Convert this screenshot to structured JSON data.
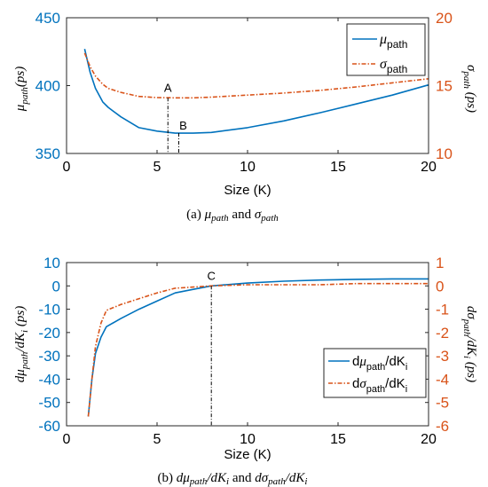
{
  "colors": {
    "blue": "#0072BD",
    "orange": "#D95319",
    "axis": "#262626",
    "text": "#000000"
  },
  "chart_data": [
    {
      "type": "line",
      "xlabel": "Size (K)",
      "xlim": [
        0,
        20
      ],
      "x_ticks": [
        "0",
        "5",
        "10",
        "15",
        "20"
      ],
      "ylabel_left": "μpath (ps)",
      "ylim_left": [
        350,
        450
      ],
      "y_ticks_left": [
        "350",
        "400",
        "450"
      ],
      "ylabel_right": "σpath (ps)",
      "ylim_right": [
        10,
        20
      ],
      "y_ticks_right": [
        "10",
        "15",
        "20"
      ],
      "legend": {
        "placement": "top-right",
        "entries": [
          "μpath",
          "σpath"
        ]
      },
      "series": [
        {
          "name": "μpath",
          "axis": "left",
          "color": "#0072BD",
          "style": "solid",
          "x": [
            1,
            1.3,
            1.6,
            2,
            2.3,
            3,
            4,
            5,
            6,
            7,
            8,
            10,
            12,
            14,
            16,
            18,
            20
          ],
          "y": [
            427,
            410,
            398,
            388,
            384,
            377,
            369,
            366.5,
            365,
            365,
            365.5,
            369,
            374,
            380,
            386.5,
            393,
            400.5
          ]
        },
        {
          "name": "σpath",
          "axis": "right",
          "color": "#D95319",
          "style": "dashdot",
          "x": [
            1,
            1.3,
            1.6,
            2,
            2.3,
            3,
            4,
            5,
            6,
            7,
            8,
            10,
            12,
            14,
            16,
            18,
            20
          ],
          "y": [
            17.4,
            16.4,
            15.7,
            15.1,
            14.8,
            14.5,
            14.2,
            14.12,
            14.1,
            14.1,
            14.15,
            14.3,
            14.45,
            14.65,
            14.9,
            15.2,
            15.5
          ]
        }
      ],
      "annotations": [
        {
          "label": "A",
          "x": 5.6,
          "y_right": 14.1,
          "y_bottom": 10
        },
        {
          "label": "B",
          "x": 6.2,
          "y_left": 365,
          "y_bottom": 350
        }
      ],
      "caption": "(a)  μpath and σpath"
    },
    {
      "type": "line",
      "xlabel": "Size (K)",
      "xlim": [
        0,
        20
      ],
      "x_ticks": [
        "0",
        "5",
        "10",
        "15",
        "20"
      ],
      "ylabel_left": "dμpath/dKi  (ps)",
      "ylim_left": [
        -60,
        10
      ],
      "y_ticks_left": [
        "10",
        "0",
        "-10",
        "-20",
        "-30",
        "-40",
        "-50",
        "-60"
      ],
      "ylabel_right": "dσpath/dKi  (ps)",
      "ylim_right": [
        -6,
        1
      ],
      "y_ticks_right": [
        "1",
        "0",
        "-1",
        "-2",
        "-3",
        "-4",
        "-5",
        "-6"
      ],
      "legend": {
        "placement": "bottom-right",
        "entries": [
          "dμpath/dKi",
          "dσpath/dKi"
        ]
      },
      "series": [
        {
          "name": "dμpath/dKi",
          "axis": "left",
          "color": "#0072BD",
          "style": "solid",
          "x": [
            1.2,
            1.4,
            1.6,
            1.9,
            2.2,
            3,
            4,
            5,
            6,
            7,
            8,
            10,
            12,
            14,
            16,
            18,
            20
          ],
          "y": [
            -56,
            -40,
            -29,
            -22,
            -17.5,
            -14,
            -10,
            -6.5,
            -3,
            -1.5,
            0,
            1.2,
            2,
            2.5,
            2.8,
            3,
            3
          ]
        },
        {
          "name": "dσpath/dKi",
          "axis": "right",
          "color": "#D95319",
          "style": "dashdot",
          "x": [
            1.2,
            1.4,
            1.6,
            1.9,
            2.2,
            3,
            4,
            5,
            6,
            7,
            8,
            10,
            12,
            14,
            16,
            18,
            20
          ],
          "y": [
            -5.6,
            -4.0,
            -2.6,
            -1.6,
            -1.05,
            -0.8,
            -0.55,
            -0.3,
            -0.1,
            -0.05,
            0,
            0.05,
            0.05,
            0.05,
            0.1,
            0.1,
            0.1
          ]
        }
      ],
      "annotations": [
        {
          "label": "C",
          "x": 8,
          "y_left": 0,
          "y_bottom": -60
        }
      ],
      "caption": "(b)  dμpath/dKi and dσpath/dKi"
    }
  ]
}
